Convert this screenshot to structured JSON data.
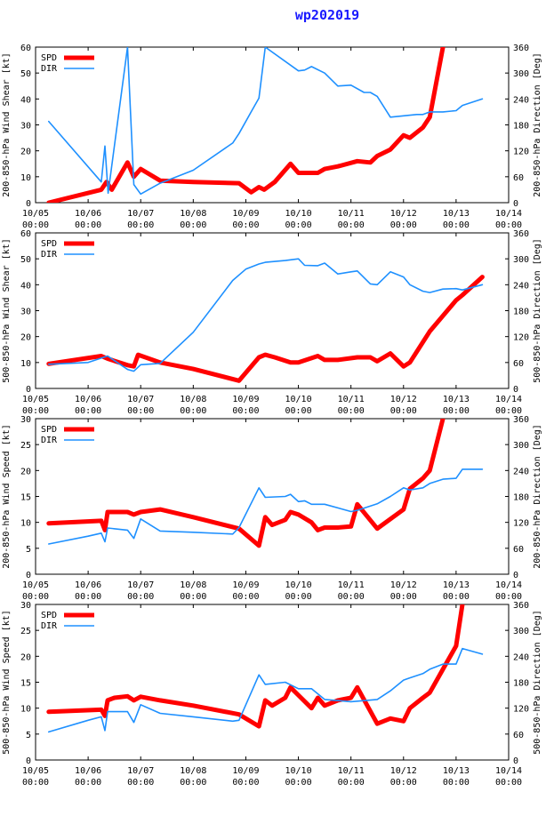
{
  "title": "wp202019",
  "colors": {
    "spd": "#ff0000",
    "dir": "#1e90ff"
  },
  "chart_data": [
    {
      "type": "line",
      "ylabel_left": "200-850-hPa Wind Shear [kt]",
      "ylabel_right": "200-850-hPa Direction [Deg]",
      "ylim": [
        0,
        60
      ],
      "ylim_right": [
        0,
        360
      ],
      "yticks": [
        "0",
        "10",
        "20",
        "30",
        "40",
        "50",
        "60"
      ],
      "yticks_right": [
        "0",
        "60",
        "120",
        "180",
        "240",
        "300",
        "360"
      ],
      "xlim": [
        0,
        9
      ],
      "xtick_dates": [
        "10/05",
        "10/06",
        "10/07",
        "10/08",
        "10/09",
        "10/10",
        "10/11",
        "10/12",
        "10/13",
        "10/14"
      ],
      "xtick_times": [
        "00:00",
        "00:00",
        "00:00",
        "00:00",
        "00:00",
        "00:00",
        "00:00",
        "00:00",
        "00:00",
        "00:00"
      ],
      "legend": [
        "SPD",
        "DIR"
      ],
      "series": [
        {
          "name": "SPD",
          "x": [
            0.25,
            1.25,
            1.35,
            1.45,
            1.75,
            1.87,
            2.0,
            2.37,
            3.0,
            3.87,
            4.1,
            4.25,
            4.35,
            4.55,
            4.85,
            5.0,
            5.37,
            5.5,
            5.75,
            6.12,
            6.37,
            6.5,
            6.75,
            7.0,
            7.12,
            7.37,
            7.5,
            7.75
          ],
          "y": [
            0,
            5,
            8,
            5,
            15.5,
            10,
            13,
            8.5,
            8,
            7.5,
            4,
            6,
            5,
            8,
            15,
            11.5,
            11.5,
            13,
            14,
            16,
            15.5,
            18,
            20.5,
            26,
            25,
            29,
            33,
            60
          ]
        },
        {
          "name": "DIR",
          "x": [
            0.25,
            1.25,
            1.32,
            1.38,
            1.75,
            1.87,
            2.0,
            2.37,
            3.0,
            3.75,
            3.87,
            4.1,
            4.25,
            4.37,
            5.0,
            5.12,
            5.25,
            5.5,
            5.75,
            6.0,
            6.25,
            6.37,
            6.5,
            6.75,
            7.25,
            7.37,
            7.5,
            7.75,
            8.0,
            8.12,
            8.5
          ],
          "y": [
            188,
            48,
            131,
            22,
            360,
            42,
            20,
            45,
            75,
            138,
            160,
            210,
            242,
            360,
            305,
            307,
            315,
            300,
            270,
            272,
            255,
            255,
            246,
            198,
            204,
            204,
            210,
            210,
            213,
            225,
            240
          ]
        }
      ]
    },
    {
      "type": "line",
      "ylabel_left": "500-850-hPa Wind Shear [kt]",
      "ylabel_right": "500-850-hPa Direction [Deg]",
      "ylim": [
        0,
        60
      ],
      "ylim_right": [
        0,
        360
      ],
      "yticks": [
        "0",
        "10",
        "20",
        "30",
        "40",
        "50",
        "60"
      ],
      "yticks_right": [
        "0",
        "60",
        "120",
        "180",
        "240",
        "300",
        "360"
      ],
      "xlim": [
        0,
        9
      ],
      "xtick_dates": [
        "10/05",
        "10/06",
        "10/07",
        "10/08",
        "10/09",
        "10/10",
        "10/11",
        "10/12",
        "10/13",
        "10/14"
      ],
      "xtick_times": [
        "00:00",
        "00:00",
        "00:00",
        "00:00",
        "00:00",
        "00:00",
        "00:00",
        "00:00",
        "00:00",
        "00:00"
      ],
      "legend": [
        "SPD",
        "DIR"
      ],
      "series": [
        {
          "name": "SPD",
          "x": [
            0.25,
            1.25,
            1.37,
            1.75,
            1.87,
            1.95,
            2.37,
            3.0,
            3.87,
            4.25,
            4.37,
            4.55,
            4.85,
            5.0,
            5.37,
            5.5,
            5.75,
            6.12,
            6.37,
            6.5,
            6.75,
            7.0,
            7.12,
            7.5,
            8.0,
            8.12,
            8.5
          ],
          "y": [
            9.5,
            12.5,
            11.5,
            9,
            8.5,
            13,
            10,
            7.5,
            3,
            12,
            13,
            12,
            10,
            10,
            12.5,
            11,
            11,
            12,
            12,
            10.5,
            13.5,
            8.5,
            10,
            22,
            34,
            36,
            43
          ]
        },
        {
          "name": "DIR",
          "x": [
            0.25,
            1.0,
            1.37,
            1.75,
            1.87,
            2.0,
            2.37,
            3.0,
            3.75,
            4.0,
            4.25,
            4.37,
            4.75,
            5.0,
            5.12,
            5.37,
            5.5,
            5.75,
            6.0,
            6.12,
            6.37,
            6.5,
            6.75,
            7.0,
            7.12,
            7.37,
            7.5,
            7.75,
            8.0,
            8.12,
            8.5
          ],
          "y": [
            56,
            60,
            75,
            44,
            40,
            55,
            58,
            130,
            250,
            276,
            288,
            292,
            296,
            300,
            285,
            284,
            290,
            265,
            270,
            272,
            242,
            240,
            270,
            258,
            240,
            225,
            222,
            230,
            231,
            228,
            240
          ]
        }
      ]
    },
    {
      "type": "line",
      "ylabel_left": "200-850-hPa Wind Speed [kt]",
      "ylabel_right": "200-850-hPa Direction [Deg]",
      "ylim": [
        0,
        30
      ],
      "ylim_right": [
        0,
        360
      ],
      "yticks": [
        "0",
        "5",
        "10",
        "15",
        "20",
        "25",
        "30"
      ],
      "yticks_right": [
        "0",
        "60",
        "120",
        "180",
        "240",
        "300",
        "360"
      ],
      "xlim": [
        0,
        9
      ],
      "xtick_dates": [
        "10/05",
        "10/06",
        "10/07",
        "10/08",
        "10/09",
        "10/10",
        "10/11",
        "10/12",
        "10/13",
        "10/14"
      ],
      "xtick_times": [
        "00:00",
        "00:00",
        "00:00",
        "00:00",
        "00:00",
        "00:00",
        "00:00",
        "00:00",
        "00:00",
        "00:00"
      ],
      "legend": [
        "SPD",
        "DIR"
      ],
      "series": [
        {
          "name": "SPD",
          "x": [
            0.25,
            1.25,
            1.32,
            1.37,
            1.5,
            1.75,
            1.87,
            2.0,
            2.37,
            3.0,
            3.87,
            4.25,
            4.37,
            4.5,
            4.75,
            4.85,
            5.0,
            5.25,
            5.37,
            5.5,
            5.75,
            6.0,
            6.12,
            6.5,
            7.0,
            7.12,
            7.37,
            7.5,
            7.75
          ],
          "y": [
            9.8,
            10.3,
            8.5,
            12,
            12,
            12,
            11.5,
            12,
            12.5,
            11,
            8.8,
            5.5,
            11,
            9.5,
            10.5,
            12,
            11.5,
            10,
            8.5,
            9,
            9,
            9.2,
            13.5,
            8.8,
            12.5,
            16.5,
            18.5,
            20,
            30
          ]
        },
        {
          "name": "DIR",
          "x": [
            0.25,
            1.0,
            1.25,
            1.32,
            1.37,
            1.75,
            1.87,
            2.0,
            2.37,
            3.0,
            3.75,
            3.87,
            4.25,
            4.37,
            4.75,
            4.85,
            5.0,
            5.12,
            5.25,
            5.5,
            6.0,
            6.12,
            6.5,
            6.75,
            7.0,
            7.12,
            7.37,
            7.5,
            7.75,
            8.0,
            8.12,
            8.5
          ],
          "y": [
            70,
            88,
            95,
            75,
            107,
            102,
            83,
            128,
            100,
            97,
            93,
            108,
            200,
            178,
            180,
            185,
            168,
            170,
            162,
            162,
            145,
            148,
            163,
            180,
            200,
            195,
            200,
            210,
            220,
            222,
            243,
            243
          ]
        }
      ]
    },
    {
      "type": "line",
      "ylabel_left": "500-850-hPa Wind Speed [kt]",
      "ylabel_right": "500-850-hPa Direction [Deg]",
      "ylim": [
        0,
        30
      ],
      "ylim_right": [
        0,
        360
      ],
      "yticks": [
        "0",
        "5",
        "10",
        "15",
        "20",
        "25",
        "30"
      ],
      "yticks_right": [
        "0",
        "60",
        "120",
        "180",
        "240",
        "300",
        "360"
      ],
      "xlim": [
        0,
        9
      ],
      "xtick_dates": [
        "10/05",
        "10/06",
        "10/07",
        "10/08",
        "10/09",
        "10/10",
        "10/11",
        "10/12",
        "10/13",
        "10/14"
      ],
      "xtick_times": [
        "00:00",
        "00:00",
        "00:00",
        "00:00",
        "00:00",
        "00:00",
        "00:00",
        "00:00",
        "00:00",
        "00:00"
      ],
      "legend": [
        "SPD",
        "DIR"
      ],
      "series": [
        {
          "name": "SPD",
          "x": [
            0.25,
            1.25,
            1.32,
            1.37,
            1.5,
            1.75,
            1.87,
            2.0,
            2.37,
            3.0,
            3.87,
            4.25,
            4.37,
            4.5,
            4.75,
            4.85,
            5.0,
            5.25,
            5.37,
            5.5,
            5.75,
            6.0,
            6.12,
            6.5,
            6.75,
            7.0,
            7.12,
            7.37,
            7.5,
            7.75,
            8.0,
            8.12
          ],
          "y": [
            9.3,
            9.7,
            8.5,
            11.5,
            12,
            12.3,
            11.5,
            12.2,
            11.5,
            10.5,
            8.8,
            6.5,
            11.5,
            10.5,
            12,
            14,
            12.5,
            10,
            12,
            10.5,
            11.5,
            12,
            14,
            7,
            8,
            7.5,
            10,
            12,
            13,
            17.5,
            22,
            30
          ]
        },
        {
          "name": "DIR",
          "x": [
            0.25,
            1.0,
            1.25,
            1.32,
            1.37,
            1.75,
            1.87,
            2.0,
            2.37,
            3.0,
            3.75,
            3.87,
            4.25,
            4.37,
            4.75,
            5.0,
            5.12,
            5.25,
            5.5,
            6.0,
            6.5,
            6.75,
            7.0,
            7.12,
            7.37,
            7.5,
            7.75,
            8.0,
            8.12,
            8.5
          ],
          "y": [
            65,
            92,
            100,
            68,
            112,
            112,
            87,
            128,
            108,
            100,
            90,
            92,
            197,
            175,
            180,
            165,
            165,
            165,
            140,
            135,
            140,
            160,
            185,
            190,
            200,
            210,
            222,
            222,
            258,
            245
          ]
        }
      ]
    }
  ]
}
